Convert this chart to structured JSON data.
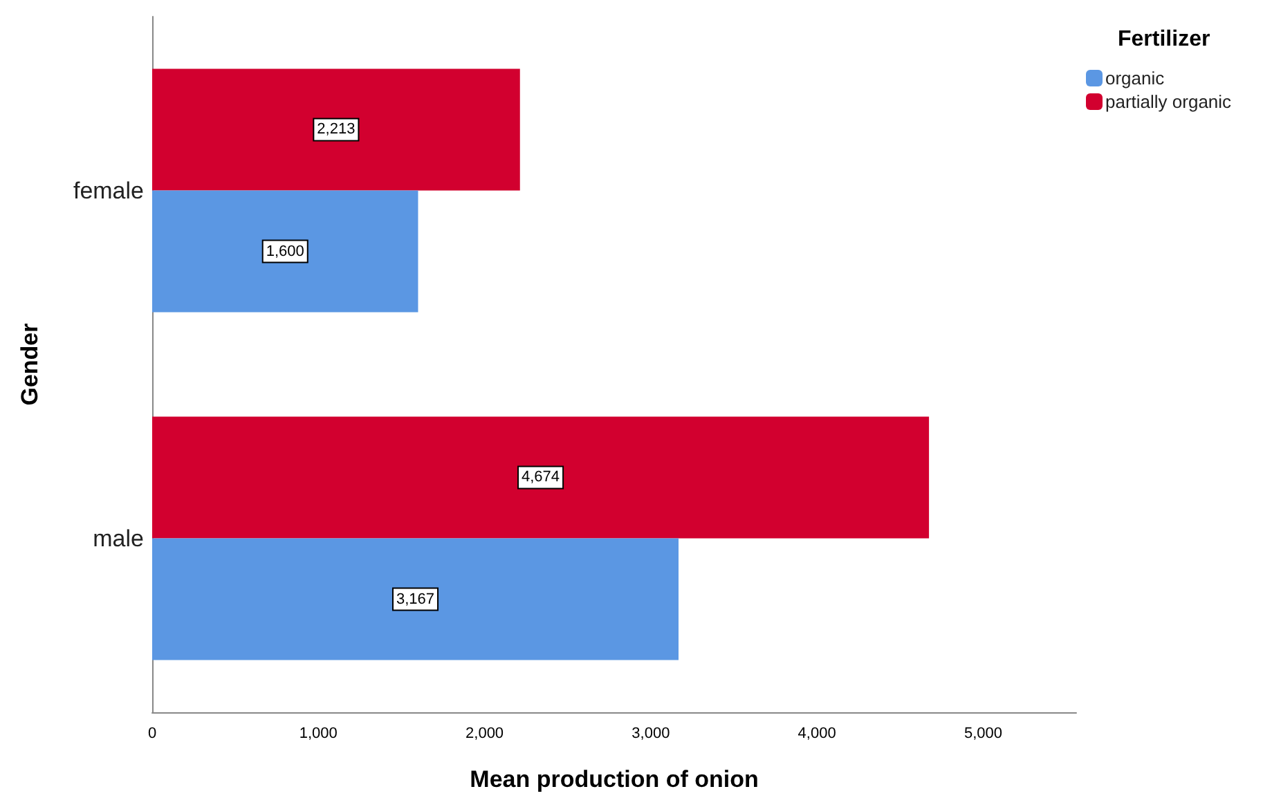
{
  "chart_data": {
    "type": "bar",
    "orientation": "horizontal",
    "xlabel": "Mean production of onion",
    "ylabel": "Gender",
    "legend_title": "Fertilizer",
    "categories": [
      "female",
      "male"
    ],
    "series": [
      {
        "name": "organic",
        "color": "#5b97e3",
        "values": [
          1600,
          3167
        ]
      },
      {
        "name": "partially organic",
        "color": "#d2002f",
        "values": [
          2213,
          4674
        ]
      }
    ],
    "value_labels": [
      [
        "1,600",
        "3,167"
      ],
      [
        "2,213",
        "4,674"
      ]
    ],
    "xlim": [
      0,
      5560
    ],
    "xticks": [
      0,
      {
        "value": 1000,
        "label": "1,000"
      },
      {
        "value": 2000,
        "label": "2,000"
      },
      {
        "value": 3000,
        "label": "3,000"
      },
      {
        "value": 4000,
        "label": "4,000"
      },
      {
        "value": 5000,
        "label": "5,000"
      }
    ],
    "grid": false,
    "legend": "top right"
  }
}
